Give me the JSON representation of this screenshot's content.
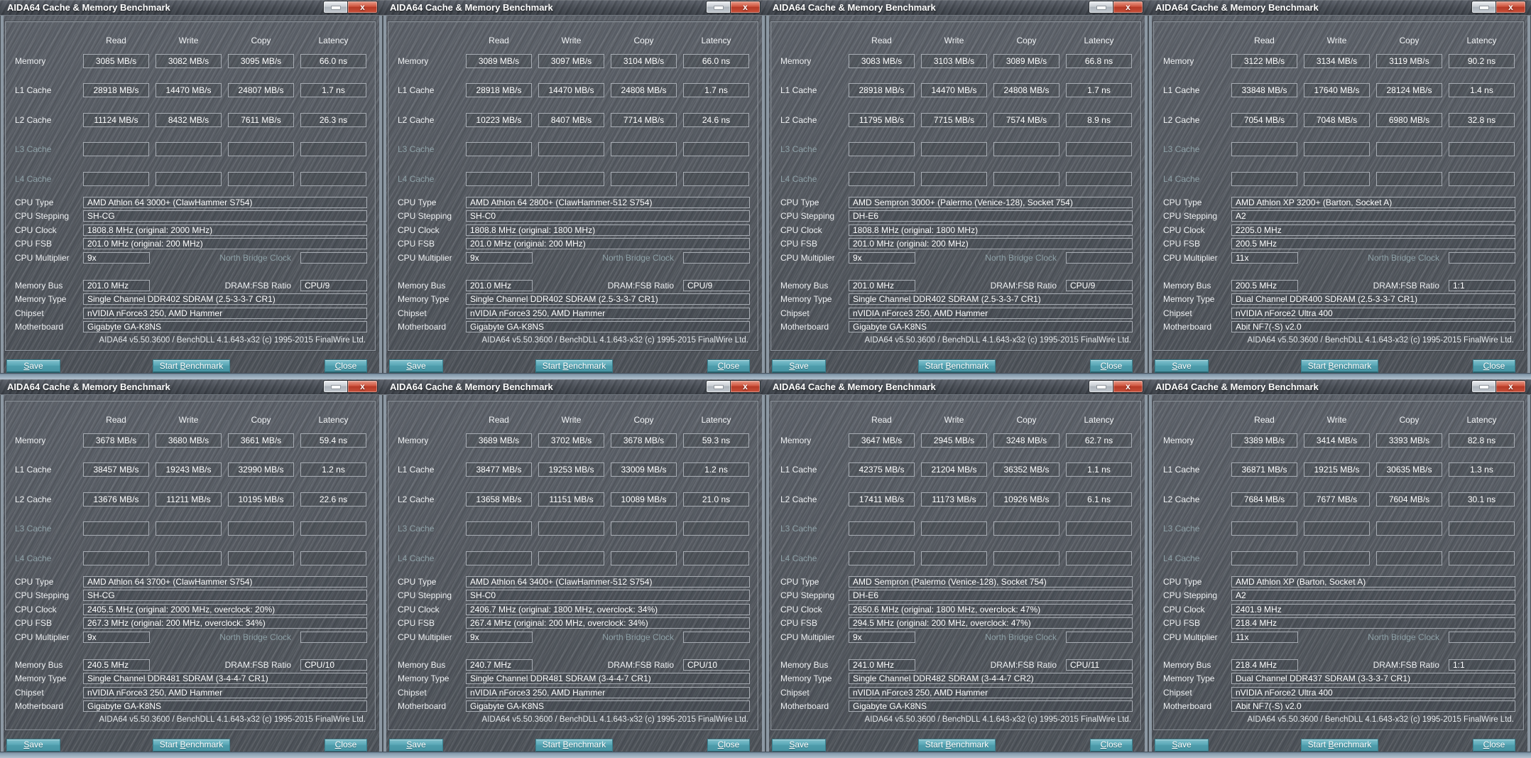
{
  "app": {
    "window_title": "AIDA64 Cache & Memory Benchmark",
    "columns": [
      "Read",
      "Write",
      "Copy",
      "Latency"
    ],
    "row_labels": {
      "memory": "Memory",
      "l1": "L1 Cache",
      "l2": "L2 Cache",
      "l3": "L3 Cache",
      "l4": "L4 Cache"
    },
    "info_labels": {
      "cpu_type": "CPU Type",
      "cpu_stepping": "CPU Stepping",
      "cpu_clock": "CPU Clock",
      "cpu_fsb": "CPU FSB",
      "cpu_multiplier": "CPU Multiplier",
      "north_bridge_clock": "North Bridge Clock",
      "memory_bus": "Memory Bus",
      "dram_fsb_ratio": "DRAM:FSB Ratio",
      "memory_type": "Memory Type",
      "chipset": "Chipset",
      "motherboard": "Motherboard"
    },
    "footer": "AIDA64 v5.50.3600 / BenchDLL 4.1.643-x32  (c) 1995-2015 FinalWire Ltd.",
    "buttons": {
      "save": {
        "before": "",
        "key": "S",
        "after": "ave"
      },
      "start": {
        "before": "Start ",
        "key": "B",
        "after": "enchmark"
      },
      "close": {
        "before": "",
        "key": "C",
        "after": "lose"
      }
    },
    "icons": {
      "close_glyph": "x"
    }
  },
  "windows": [
    {
      "bench": {
        "memory": {
          "read": "3085 MB/s",
          "write": "3082 MB/s",
          "copy": "3095 MB/s",
          "latency": "66.0 ns"
        },
        "l1": {
          "read": "28918 MB/s",
          "write": "14470 MB/s",
          "copy": "24807 MB/s",
          "latency": "1.7 ns"
        },
        "l2": {
          "read": "11124 MB/s",
          "write": "8432 MB/s",
          "copy": "7611 MB/s",
          "latency": "26.3 ns"
        },
        "l3": {
          "read": "",
          "write": "",
          "copy": "",
          "latency": ""
        },
        "l4": {
          "read": "",
          "write": "",
          "copy": "",
          "latency": ""
        }
      },
      "info": {
        "cpu_type": "AMD Athlon 64 3000+  (ClawHammer S754)",
        "cpu_stepping": "SH-CG",
        "cpu_clock": "1808.8 MHz  (original: 2000 MHz)",
        "cpu_fsb": "201.0 MHz  (original: 200 MHz)",
        "cpu_multiplier": "9x",
        "north_bridge_clock": "",
        "memory_bus": "201.0 MHz",
        "dram_fsb_ratio": "CPU/9",
        "memory_type": "Single Channel DDR402 SDRAM  (2.5-3-3-7 CR1)",
        "chipset": "nVIDIA nForce3 250, AMD Hammer",
        "motherboard": "Gigabyte GA-K8NS"
      }
    },
    {
      "bench": {
        "memory": {
          "read": "3089 MB/s",
          "write": "3097 MB/s",
          "copy": "3104 MB/s",
          "latency": "66.0 ns"
        },
        "l1": {
          "read": "28918 MB/s",
          "write": "14470 MB/s",
          "copy": "24808 MB/s",
          "latency": "1.7 ns"
        },
        "l2": {
          "read": "10223 MB/s",
          "write": "8407 MB/s",
          "copy": "7714 MB/s",
          "latency": "24.6 ns"
        },
        "l3": {
          "read": "",
          "write": "",
          "copy": "",
          "latency": ""
        },
        "l4": {
          "read": "",
          "write": "",
          "copy": "",
          "latency": ""
        }
      },
      "info": {
        "cpu_type": "AMD Athlon 64 2800+  (ClawHammer-512 S754)",
        "cpu_stepping": "SH-C0",
        "cpu_clock": "1808.8 MHz  (original: 1800 MHz)",
        "cpu_fsb": "201.0 MHz  (original: 200 MHz)",
        "cpu_multiplier": "9x",
        "north_bridge_clock": "",
        "memory_bus": "201.0 MHz",
        "dram_fsb_ratio": "CPU/9",
        "memory_type": "Single Channel DDR402 SDRAM  (2.5-3-3-7 CR1)",
        "chipset": "nVIDIA nForce3 250, AMD Hammer",
        "motherboard": "Gigabyte GA-K8NS"
      }
    },
    {
      "bench": {
        "memory": {
          "read": "3083 MB/s",
          "write": "3103 MB/s",
          "copy": "3089 MB/s",
          "latency": "66.8 ns"
        },
        "l1": {
          "read": "28918 MB/s",
          "write": "14470 MB/s",
          "copy": "24808 MB/s",
          "latency": "1.7 ns"
        },
        "l2": {
          "read": "11795 MB/s",
          "write": "7715 MB/s",
          "copy": "7574 MB/s",
          "latency": "8.9 ns"
        },
        "l3": {
          "read": "",
          "write": "",
          "copy": "",
          "latency": ""
        },
        "l4": {
          "read": "",
          "write": "",
          "copy": "",
          "latency": ""
        }
      },
      "info": {
        "cpu_type": "AMD Sempron 3000+  (Palermo (Venice-128), Socket 754)",
        "cpu_stepping": "DH-E6",
        "cpu_clock": "1808.8 MHz  (original: 1800 MHz)",
        "cpu_fsb": "201.0 MHz  (original: 200 MHz)",
        "cpu_multiplier": "9x",
        "north_bridge_clock": "",
        "memory_bus": "201.0 MHz",
        "dram_fsb_ratio": "CPU/9",
        "memory_type": "Single Channel DDR402 SDRAM  (2.5-3-3-7 CR1)",
        "chipset": "nVIDIA nForce3 250, AMD Hammer",
        "motherboard": "Gigabyte GA-K8NS"
      }
    },
    {
      "bench": {
        "memory": {
          "read": "3122 MB/s",
          "write": "3134 MB/s",
          "copy": "3119 MB/s",
          "latency": "90.2 ns"
        },
        "l1": {
          "read": "33848 MB/s",
          "write": "17640 MB/s",
          "copy": "28124 MB/s",
          "latency": "1.4 ns"
        },
        "l2": {
          "read": "7054 MB/s",
          "write": "7048 MB/s",
          "copy": "6980 MB/s",
          "latency": "32.8 ns"
        },
        "l3": {
          "read": "",
          "write": "",
          "copy": "",
          "latency": ""
        },
        "l4": {
          "read": "",
          "write": "",
          "copy": "",
          "latency": ""
        }
      },
      "info": {
        "cpu_type": "AMD Athlon XP 3200+  (Barton, Socket A)",
        "cpu_stepping": "A2",
        "cpu_clock": "2205.0 MHz",
        "cpu_fsb": "200.5 MHz",
        "cpu_multiplier": "11x",
        "north_bridge_clock": "",
        "memory_bus": "200.5 MHz",
        "dram_fsb_ratio": "1:1",
        "memory_type": "Dual Channel DDR400 SDRAM  (2.5-3-3-7 CR1)",
        "chipset": "nVIDIA nForce2 Ultra 400",
        "motherboard": "Abit NF7(-S) v2.0"
      }
    },
    {
      "bench": {
        "memory": {
          "read": "3678 MB/s",
          "write": "3680 MB/s",
          "copy": "3661 MB/s",
          "latency": "59.4 ns"
        },
        "l1": {
          "read": "38457 MB/s",
          "write": "19243 MB/s",
          "copy": "32990 MB/s",
          "latency": "1.2 ns"
        },
        "l2": {
          "read": "13676 MB/s",
          "write": "11211 MB/s",
          "copy": "10195 MB/s",
          "latency": "22.6 ns"
        },
        "l3": {
          "read": "",
          "write": "",
          "copy": "",
          "latency": ""
        },
        "l4": {
          "read": "",
          "write": "",
          "copy": "",
          "latency": ""
        }
      },
      "info": {
        "cpu_type": "AMD Athlon 64 3700+  (ClawHammer S754)",
        "cpu_stepping": "SH-CG",
        "cpu_clock": "2405.5 MHz  (original: 2000 MHz, overclock: 20%)",
        "cpu_fsb": "267.3 MHz  (original: 200 MHz, overclock: 34%)",
        "cpu_multiplier": "9x",
        "north_bridge_clock": "",
        "memory_bus": "240.5 MHz",
        "dram_fsb_ratio": "CPU/10",
        "memory_type": "Single Channel DDR481 SDRAM  (3-4-4-7 CR1)",
        "chipset": "nVIDIA nForce3 250, AMD Hammer",
        "motherboard": "Gigabyte GA-K8NS"
      }
    },
    {
      "bench": {
        "memory": {
          "read": "3689 MB/s",
          "write": "3702 MB/s",
          "copy": "3678 MB/s",
          "latency": "59.3 ns"
        },
        "l1": {
          "read": "38477 MB/s",
          "write": "19253 MB/s",
          "copy": "33009 MB/s",
          "latency": "1.2 ns"
        },
        "l2": {
          "read": "13658 MB/s",
          "write": "11151 MB/s",
          "copy": "10089 MB/s",
          "latency": "21.0 ns"
        },
        "l3": {
          "read": "",
          "write": "",
          "copy": "",
          "latency": ""
        },
        "l4": {
          "read": "",
          "write": "",
          "copy": "",
          "latency": ""
        }
      },
      "info": {
        "cpu_type": "AMD Athlon 64 3400+  (ClawHammer-512 S754)",
        "cpu_stepping": "SH-C0",
        "cpu_clock": "2406.7 MHz  (original: 1800 MHz, overclock: 34%)",
        "cpu_fsb": "267.4 MHz  (original: 200 MHz, overclock: 34%)",
        "cpu_multiplier": "9x",
        "north_bridge_clock": "",
        "memory_bus": "240.7 MHz",
        "dram_fsb_ratio": "CPU/10",
        "memory_type": "Single Channel DDR481 SDRAM  (3-4-4-7 CR1)",
        "chipset": "nVIDIA nForce3 250, AMD Hammer",
        "motherboard": "Gigabyte GA-K8NS"
      }
    },
    {
      "bench": {
        "memory": {
          "read": "3647 MB/s",
          "write": "2945 MB/s",
          "copy": "3248 MB/s",
          "latency": "62.7 ns"
        },
        "l1": {
          "read": "42375 MB/s",
          "write": "21204 MB/s",
          "copy": "36352 MB/s",
          "latency": "1.1 ns"
        },
        "l2": {
          "read": "17411 MB/s",
          "write": "11173 MB/s",
          "copy": "10926 MB/s",
          "latency": "6.1 ns"
        },
        "l3": {
          "read": "",
          "write": "",
          "copy": "",
          "latency": ""
        },
        "l4": {
          "read": "",
          "write": "",
          "copy": "",
          "latency": ""
        }
      },
      "info": {
        "cpu_type": "AMD Sempron  (Palermo (Venice-128), Socket 754)",
        "cpu_stepping": "DH-E6",
        "cpu_clock": "2650.6 MHz  (original: 1800 MHz, overclock: 47%)",
        "cpu_fsb": "294.5 MHz  (original: 200 MHz, overclock: 47%)",
        "cpu_multiplier": "9x",
        "north_bridge_clock": "",
        "memory_bus": "241.0 MHz",
        "dram_fsb_ratio": "CPU/11",
        "memory_type": "Single Channel DDR482 SDRAM  (3-4-4-7 CR2)",
        "chipset": "nVIDIA nForce3 250, AMD Hammer",
        "motherboard": "Gigabyte GA-K8NS"
      }
    },
    {
      "bench": {
        "memory": {
          "read": "3389 MB/s",
          "write": "3414 MB/s",
          "copy": "3393 MB/s",
          "latency": "82.8 ns"
        },
        "l1": {
          "read": "36871 MB/s",
          "write": "19215 MB/s",
          "copy": "30635 MB/s",
          "latency": "1.3 ns"
        },
        "l2": {
          "read": "7684 MB/s",
          "write": "7677 MB/s",
          "copy": "7604 MB/s",
          "latency": "30.1 ns"
        },
        "l3": {
          "read": "",
          "write": "",
          "copy": "",
          "latency": ""
        },
        "l4": {
          "read": "",
          "write": "",
          "copy": "",
          "latency": ""
        }
      },
      "info": {
        "cpu_type": "AMD Athlon XP  (Barton, Socket A)",
        "cpu_stepping": "A2",
        "cpu_clock": "2401.9 MHz",
        "cpu_fsb": "218.4 MHz",
        "cpu_multiplier": "11x",
        "north_bridge_clock": "",
        "memory_bus": "218.4 MHz",
        "dram_fsb_ratio": "1:1",
        "memory_type": "Dual Channel DDR437 SDRAM  (3-3-3-7 CR1)",
        "chipset": "nVIDIA nForce2 Ultra 400",
        "motherboard": "Abit NF7(-S) v2.0"
      }
    }
  ]
}
